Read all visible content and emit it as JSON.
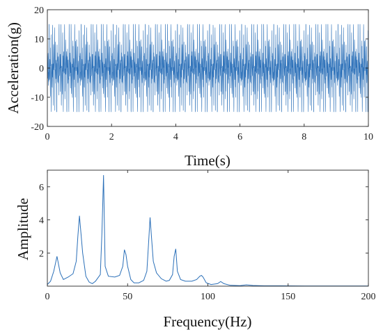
{
  "chart_data": [
    {
      "type": "line",
      "xlabel": "Time(s)",
      "ylabel": "Acceleration(g)",
      "xlim": [
        0,
        10
      ],
      "ylim": [
        -20,
        20
      ],
      "xticks": [
        0,
        2,
        4,
        6,
        8,
        10
      ],
      "yticks": [
        -20,
        -10,
        0,
        10,
        20
      ],
      "grid": false,
      "signal": {
        "description_values": "dense multi-tone vibration signal",
        "peak_amplitude_g": 15,
        "components_hz": [
          6,
          19,
          35,
          48,
          64,
          80,
          96,
          108
        ],
        "component_amplitudes": [
          1.8,
          4.2,
          6.7,
          2.2,
          4.1,
          2.2,
          0.6,
          0.25
        ]
      },
      "line_color": "#2a6fb8"
    },
    {
      "type": "line",
      "xlabel": "Frequency(Hz)",
      "ylabel": "Amplitude",
      "xlim": [
        0,
        200
      ],
      "ylim": [
        0,
        7
      ],
      "xticks": [
        0,
        50,
        100,
        150,
        200
      ],
      "yticks": [
        2,
        4,
        6
      ],
      "grid": false,
      "x": [
        0,
        2,
        4,
        6,
        8,
        10,
        13,
        16,
        18,
        19,
        20,
        22,
        24,
        26,
        28,
        30,
        33,
        34,
        35,
        36,
        38,
        42,
        45,
        47,
        48,
        49,
        50,
        52,
        54,
        57,
        60,
        62,
        63,
        64,
        65,
        66,
        68,
        71,
        74,
        76,
        78,
        79,
        80,
        81,
        83,
        86,
        90,
        93,
        95,
        96,
        97,
        99,
        102,
        106,
        108,
        110,
        114,
        120,
        124,
        128,
        135,
        145,
        160,
        175,
        190,
        200
      ],
      "y": [
        0.1,
        0.3,
        0.9,
        1.8,
        0.8,
        0.4,
        0.55,
        0.75,
        1.5,
        3.0,
        4.25,
        2.0,
        0.6,
        0.25,
        0.15,
        0.3,
        0.7,
        3.2,
        6.7,
        1.2,
        0.6,
        0.55,
        0.65,
        1.2,
        2.2,
        1.9,
        1.2,
        0.4,
        0.2,
        0.2,
        0.35,
        0.9,
        2.5,
        4.15,
        2.8,
        1.5,
        0.8,
        0.45,
        0.3,
        0.35,
        0.7,
        1.8,
        2.25,
        0.9,
        0.4,
        0.3,
        0.3,
        0.4,
        0.6,
        0.65,
        0.55,
        0.2,
        0.1,
        0.15,
        0.28,
        0.15,
        0.05,
        0.03,
        0.08,
        0.04,
        0.02,
        0.02,
        0.01,
        0.01,
        0.01,
        0.01
      ],
      "line_color": "#2a6fb8"
    }
  ]
}
